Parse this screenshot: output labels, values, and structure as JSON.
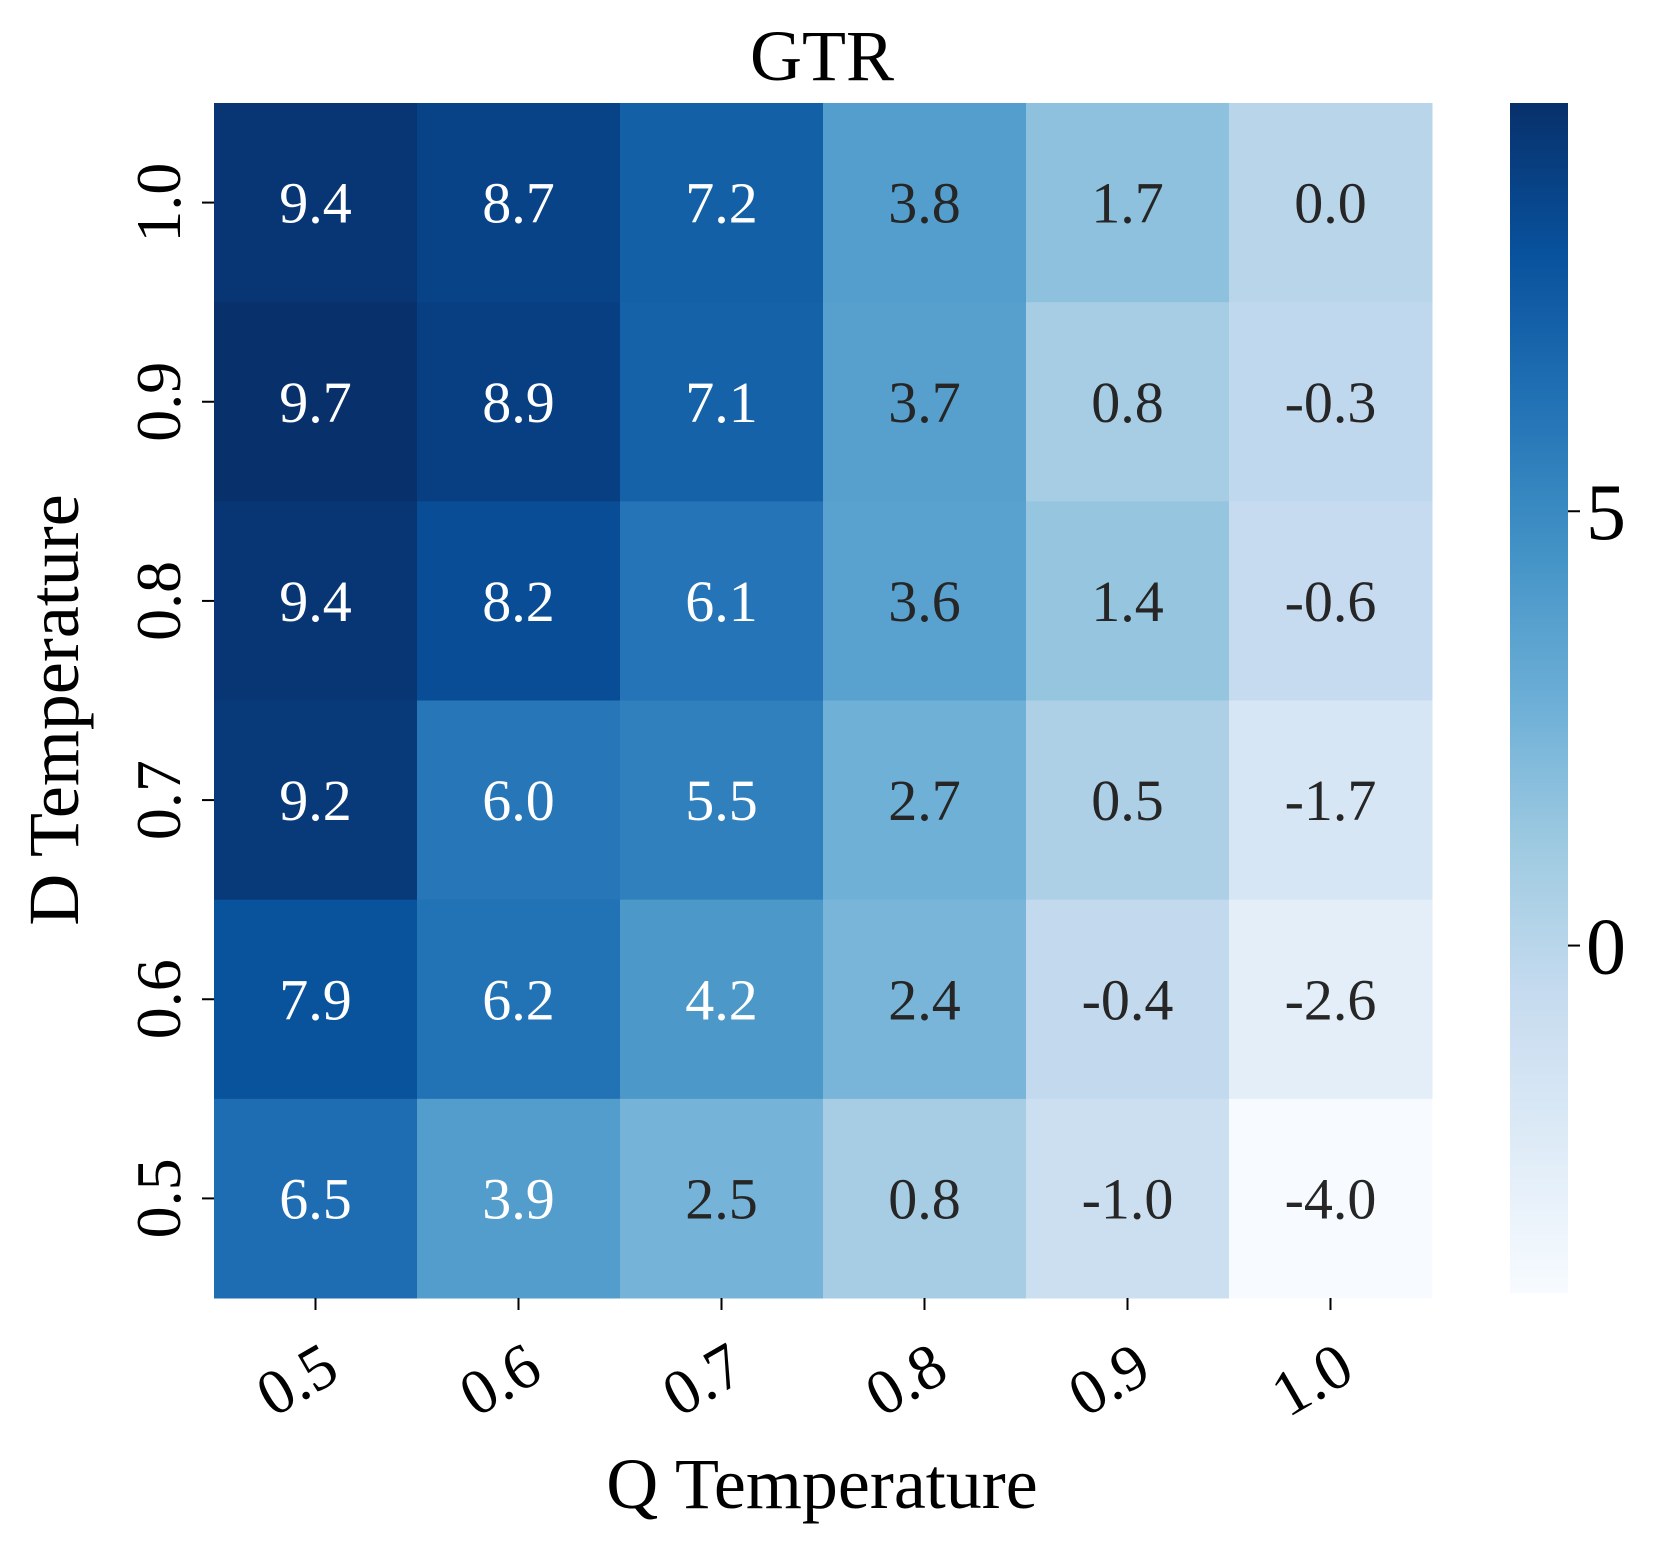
{
  "chart_data": {
    "type": "heatmap",
    "title": "GTR",
    "xlabel": "Q Temperature",
    "ylabel": "D Temperature",
    "x_categories": [
      "0.5",
      "0.6",
      "0.7",
      "0.8",
      "0.9",
      "1.0"
    ],
    "y_categories": [
      "1.0",
      "0.9",
      "0.8",
      "0.7",
      "0.6",
      "0.5"
    ],
    "values": [
      [
        9.4,
        8.7,
        7.2,
        3.8,
        1.7,
        0.0
      ],
      [
        9.7,
        8.9,
        7.1,
        3.7,
        0.8,
        -0.3
      ],
      [
        9.4,
        8.2,
        6.1,
        3.6,
        1.4,
        -0.6
      ],
      [
        9.2,
        6.0,
        5.5,
        2.7,
        0.5,
        -1.7
      ],
      [
        7.9,
        6.2,
        4.2,
        2.4,
        -0.4,
        -2.6
      ],
      [
        6.5,
        3.9,
        2.5,
        0.8,
        -1.0,
        -4.0
      ]
    ],
    "colorbar": {
      "colormap": "Blues",
      "vmin": -4.0,
      "vmax": 9.7,
      "ticks": [
        5,
        0
      ]
    },
    "colors": {
      "low": "#f7fbff",
      "high": "#08306b",
      "text_light": "#ffffff",
      "text_dark": "#262626"
    }
  }
}
